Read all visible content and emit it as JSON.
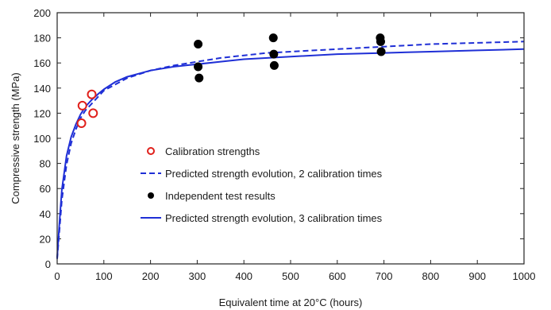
{
  "chart_data": {
    "type": "scatter",
    "xlabel": "Equivalent time at 20°C (hours)",
    "ylabel": "Compressive strength (MPa)",
    "xlim": [
      0,
      1000
    ],
    "ylim": [
      0,
      200
    ],
    "x_ticks": [
      0,
      100,
      200,
      300,
      400,
      500,
      600,
      700,
      800,
      900,
      1000
    ],
    "y_ticks": [
      0,
      20,
      40,
      60,
      80,
      100,
      120,
      140,
      160,
      180,
      200
    ],
    "grid": false,
    "legend_position": "center",
    "series": [
      {
        "name": "Calibration strengths",
        "kind": "points",
        "marker": "open-circle",
        "color": "#e0201b",
        "x": [
          52,
          54,
          74,
          77
        ],
        "y": [
          112,
          126,
          135,
          120
        ]
      },
      {
        "name": "Predicted strength evolution, 2 calibration times",
        "kind": "line",
        "dash": "dashed",
        "color": "#1f2fd6",
        "x": [
          0,
          5,
          10,
          20,
          30,
          40,
          50,
          60,
          75,
          90,
          100,
          125,
          150,
          200,
          250,
          300,
          350,
          400,
          450,
          500,
          600,
          700,
          800,
          900,
          1000
        ],
        "y": [
          4,
          27,
          51,
          79,
          96,
          107,
          116,
          122,
          128,
          134,
          138,
          143,
          148,
          154,
          158,
          161,
          164,
          166,
          168,
          169,
          171,
          173,
          175,
          176,
          177
        ]
      },
      {
        "name": "Independent test results",
        "kind": "points",
        "marker": "filled-circle",
        "color": "#000000",
        "x": [
          302,
          302,
          304,
          463,
          464,
          465,
          692,
          693,
          694
        ],
        "y": [
          175,
          157,
          148,
          180,
          167,
          158,
          180,
          177,
          169
        ]
      },
      {
        "name": "Predicted strength evolution, 3 calibration times",
        "kind": "line",
        "dash": "solid",
        "color": "#1f2fd6",
        "x": [
          0,
          5,
          10,
          20,
          30,
          40,
          50,
          60,
          75,
          90,
          100,
          125,
          150,
          200,
          250,
          300,
          350,
          400,
          450,
          500,
          600,
          700,
          800,
          900,
          1000
        ],
        "y": [
          5,
          33,
          59,
          86,
          101,
          111,
          119,
          125,
          131,
          136,
          139,
          145,
          149,
          154,
          157,
          159,
          161,
          163,
          164,
          165,
          167,
          168,
          169,
          170,
          171
        ]
      }
    ],
    "legend_order": [
      0,
      1,
      2,
      3
    ]
  }
}
